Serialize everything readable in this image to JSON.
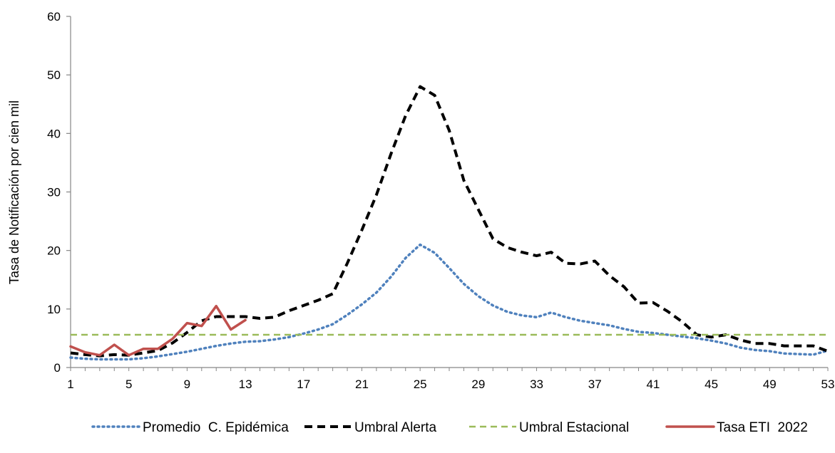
{
  "chart_data": {
    "type": "line",
    "ylabel": "Tasa de Notificación por cien mil",
    "xlabel": "",
    "title": "",
    "xlim": [
      1,
      53
    ],
    "ylim": [
      0,
      60
    ],
    "x_ticks": [
      1,
      5,
      9,
      13,
      17,
      21,
      25,
      29,
      33,
      37,
      41,
      45,
      49,
      53
    ],
    "y_ticks": [
      0,
      10,
      20,
      30,
      40,
      50,
      60
    ],
    "grid": false,
    "legend_position": "bottom",
    "series": [
      {
        "name": "Promedio  C. Epidémica",
        "color": "#4f81bd",
        "style": "dotted",
        "x": [
          1,
          2,
          3,
          4,
          5,
          6,
          7,
          8,
          9,
          10,
          11,
          12,
          13,
          14,
          15,
          16,
          17,
          18,
          19,
          20,
          21,
          22,
          23,
          24,
          25,
          26,
          27,
          28,
          29,
          30,
          31,
          32,
          33,
          34,
          35,
          36,
          37,
          38,
          39,
          40,
          41,
          42,
          43,
          44,
          45,
          46,
          47,
          48,
          49,
          50,
          51,
          52,
          53
        ],
        "values": [
          1.7,
          1.5,
          1.4,
          1.4,
          1.4,
          1.6,
          1.9,
          2.3,
          2.7,
          3.2,
          3.7,
          4.1,
          4.4,
          4.5,
          4.8,
          5.2,
          5.8,
          6.5,
          7.4,
          9.0,
          10.8,
          12.8,
          15.5,
          18.7,
          21.0,
          19.6,
          17.0,
          14.3,
          12.2,
          10.6,
          9.5,
          8.9,
          8.6,
          9.4,
          8.6,
          8.0,
          7.6,
          7.2,
          6.6,
          6.1,
          5.9,
          5.6,
          5.3,
          5.0,
          4.6,
          4.1,
          3.4,
          3.0,
          2.8,
          2.4,
          2.3,
          2.2,
          2.9
        ]
      },
      {
        "name": "Umbral Alerta",
        "color": "#000000",
        "style": "dashed",
        "x": [
          1,
          2,
          3,
          4,
          5,
          6,
          7,
          8,
          9,
          10,
          11,
          12,
          13,
          14,
          15,
          16,
          17,
          18,
          19,
          20,
          21,
          22,
          23,
          24,
          25,
          26,
          27,
          28,
          29,
          30,
          31,
          32,
          33,
          34,
          35,
          36,
          37,
          38,
          39,
          40,
          41,
          42,
          43,
          44,
          45,
          46,
          47,
          48,
          49,
          50,
          51,
          52,
          53
        ],
        "values": [
          2.5,
          2.2,
          2.0,
          2.2,
          2.1,
          2.5,
          2.9,
          4.2,
          6.0,
          8.0,
          8.7,
          8.7,
          8.7,
          8.4,
          8.6,
          9.7,
          10.6,
          11.5,
          12.6,
          17.8,
          23.5,
          29.5,
          36.5,
          43.0,
          48.0,
          46.5,
          40.5,
          32.0,
          27.0,
          22.0,
          20.5,
          19.7,
          19.1,
          19.7,
          17.8,
          17.7,
          18.2,
          15.7,
          13.8,
          11.0,
          11.1,
          9.6,
          7.8,
          5.6,
          5.2,
          5.6,
          4.7,
          4.1,
          4.1,
          3.7,
          3.7,
          3.7,
          2.8
        ]
      },
      {
        "name": "Umbral Estacional",
        "color": "#9bbb59",
        "style": "dashed",
        "x": [
          1,
          53
        ],
        "values": [
          5.6,
          5.6
        ]
      },
      {
        "name": "Tasa ETI  2022",
        "color": "#c0504d",
        "style": "solid",
        "x": [
          1,
          2,
          3,
          4,
          5,
          6,
          7,
          8,
          9,
          10,
          11,
          12,
          13
        ],
        "values": [
          3.6,
          2.6,
          2.1,
          3.9,
          2.1,
          3.2,
          3.2,
          4.9,
          7.6,
          7.1,
          10.5,
          6.5,
          8.1
        ]
      }
    ]
  }
}
